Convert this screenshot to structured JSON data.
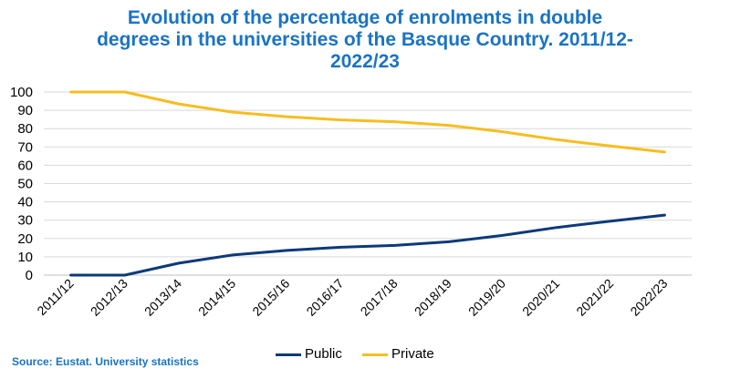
{
  "chart_data": {
    "type": "line",
    "title_lines": [
      "Evolution of the percentage of enrolments in double",
      "degrees in the universities of the Basque Country. 2011/12-",
      "2022/23"
    ],
    "categories": [
      "2011/12",
      "2012/13",
      "2013/14",
      "2014/15",
      "2015/16",
      "2016/17",
      "2017/18",
      "2018/19",
      "2019/20",
      "2020/21",
      "2021/22",
      "2022/23"
    ],
    "series": [
      {
        "name": "Public",
        "color": "#0b3a7a",
        "values": [
          0,
          0,
          6.5,
          11,
          13.5,
          15.2,
          16.2,
          18.2,
          21.7,
          26,
          29.5,
          32.8
        ]
      },
      {
        "name": "Private",
        "color": "#f7bd1f",
        "values": [
          100,
          100,
          93.5,
          89,
          86.5,
          84.8,
          83.8,
          81.8,
          78.3,
          74,
          70.5,
          67.2
        ]
      }
    ],
    "yticks": [
      0,
      10,
      20,
      30,
      40,
      50,
      60,
      70,
      80,
      90,
      100
    ],
    "ylim": [
      0,
      100
    ],
    "grid": true,
    "legend_position": "bottom",
    "source": "Source: Eustat. University statistics"
  }
}
